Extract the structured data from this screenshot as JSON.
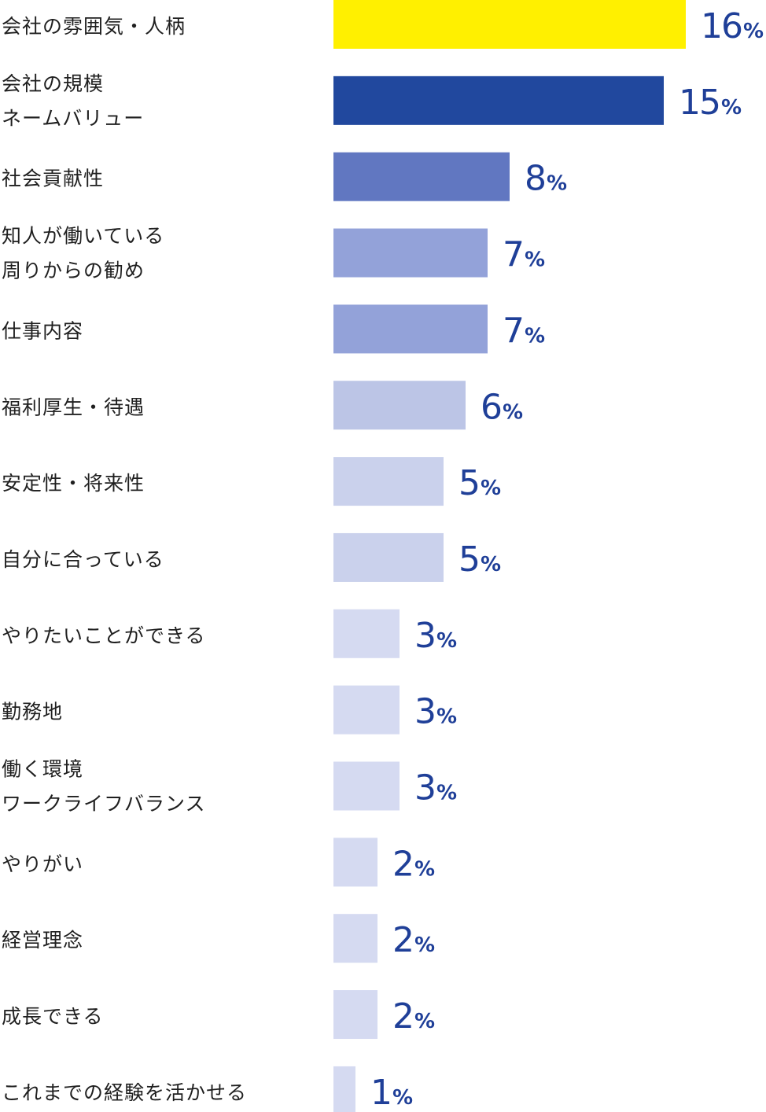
{
  "chart_data": {
    "type": "bar",
    "orientation": "horizontal",
    "unit": "%",
    "xlim": [
      0,
      16
    ],
    "grid": false,
    "categories": [
      [
        "会社の雰囲気・人柄"
      ],
      [
        "会社の規模",
        "ネームバリュー"
      ],
      [
        "社会貢献性"
      ],
      [
        "知人が働いている",
        "周りからの勧め"
      ],
      [
        "仕事内容"
      ],
      [
        "福利厚生・待遇"
      ],
      [
        "安定性・将来性"
      ],
      [
        "自分に合っている"
      ],
      [
        "やりたいことができる"
      ],
      [
        "勤務地"
      ],
      [
        "働く環境",
        "ワークライフバランス"
      ],
      [
        "やりがい"
      ],
      [
        "経営理念"
      ],
      [
        "成長できる"
      ],
      [
        "これまでの経験を活かせる"
      ]
    ],
    "values": [
      16,
      15,
      8,
      7,
      7,
      6,
      5,
      5,
      3,
      3,
      3,
      2,
      2,
      2,
      1
    ],
    "value_labels": [
      "16",
      "15",
      "8",
      "7",
      "7",
      "6",
      "5",
      "5",
      "3",
      "3",
      "3",
      "2",
      "2",
      "2",
      "1"
    ],
    "bar_colors": [
      "#fff000",
      "#21489e",
      "#6177c1",
      "#93a2d9",
      "#93a2d9",
      "#bcc5e6",
      "#cad1ec",
      "#cad1ec",
      "#d5daf1",
      "#d5daf1",
      "#d5daf1",
      "#d5daf1",
      "#d5daf1",
      "#d5daf1",
      "#d5daf1"
    ],
    "value_color": "#1f3f98"
  }
}
